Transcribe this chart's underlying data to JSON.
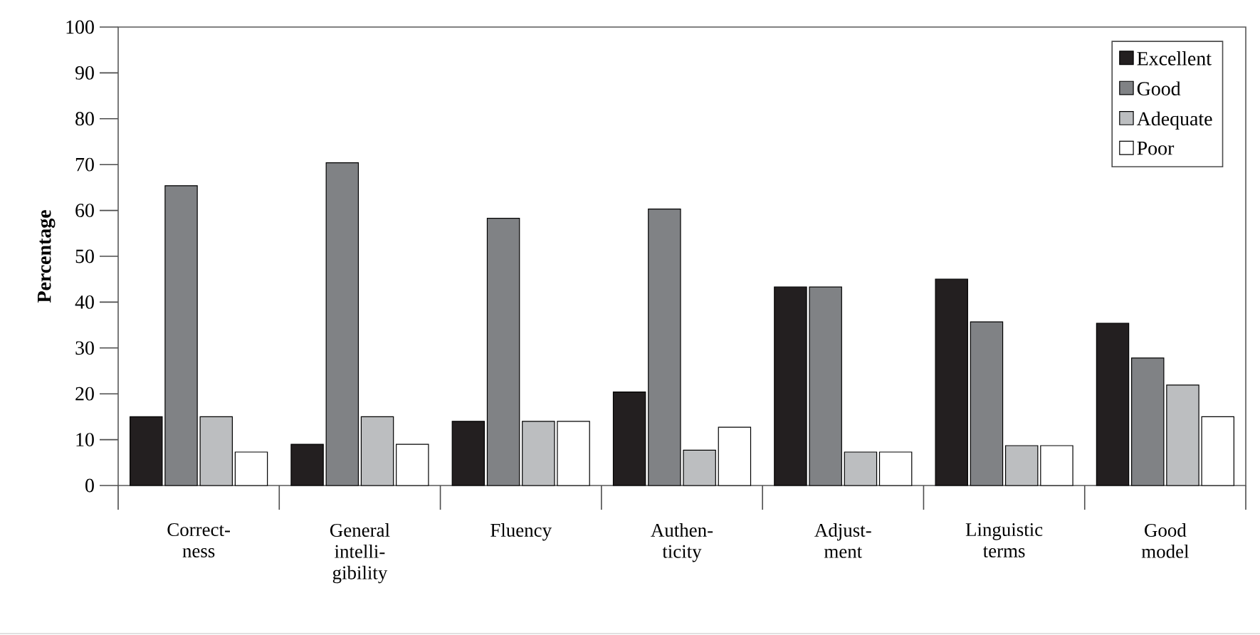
{
  "chart_data": {
    "type": "bar",
    "ylabel": "Percentage",
    "categories": [
      "Correct- ness",
      "General intelli- gibility",
      "Fluency",
      "Authen- ticity",
      "Adjust- ment",
      "Linguistic terms",
      "Good model"
    ],
    "series": [
      {
        "name": "Excellent",
        "color": "#231f20",
        "values": [
          15,
          9,
          14,
          20.4,
          43.3,
          45,
          35.4
        ]
      },
      {
        "name": "Good",
        "color": "#808285",
        "values": [
          65.4,
          70.4,
          58.3,
          60.3,
          43.3,
          35.7,
          27.8
        ]
      },
      {
        "name": "Adequate",
        "color": "#bcbec0",
        "values": [
          15,
          15,
          14,
          7.7,
          7.3,
          8.7,
          21.9
        ]
      },
      {
        "name": "Poor",
        "color": "#ffffff",
        "values": [
          7.3,
          9,
          14,
          12.7,
          7.3,
          8.7,
          15
        ]
      }
    ],
    "ylim": [
      0,
      100
    ],
    "yticks": [
      0,
      10,
      20,
      30,
      40,
      50,
      60,
      70,
      80,
      90,
      100
    ],
    "legend": "top right"
  }
}
